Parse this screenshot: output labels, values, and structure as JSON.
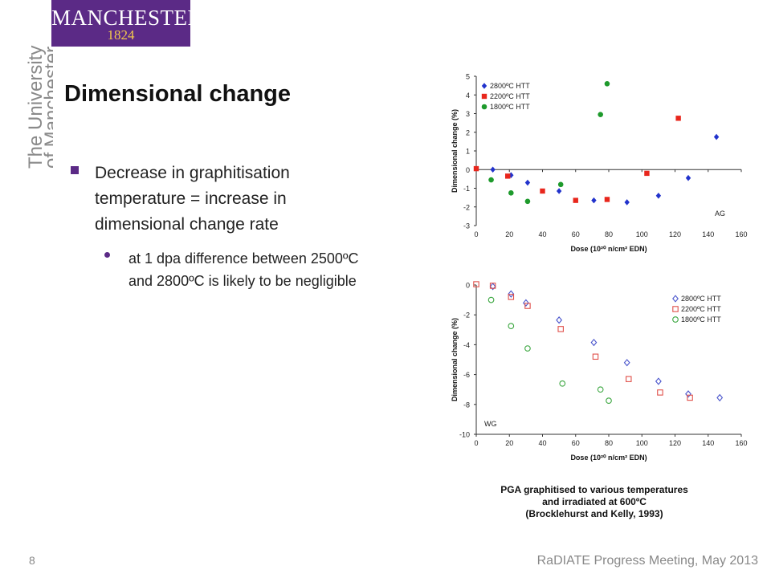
{
  "branding": {
    "logo_word": "MANCHESTER",
    "logo_year": "1824",
    "university_line1": "The University",
    "university_line2": "of Manchester",
    "logo_bg": "#5b2a86",
    "logo_year_color": "#f2c94c"
  },
  "slide": {
    "title": "Dimensional change",
    "bullets": [
      {
        "text": "Decrease in graphitisation temperature = increase in dimensional change rate",
        "sub": [
          {
            "text": "at 1 dpa difference between 2500ºC and 2800ºC is likely to be negligible"
          }
        ]
      }
    ],
    "caption_lines": [
      "PGA graphitised to various temperatures",
      "and irradiated at 600ºC",
      "(Brocklehurst and Kelly, 1993)"
    ],
    "page_number": "8",
    "footer": "RaDIATE Progress Meeting, May 2013"
  },
  "chart_data": [
    {
      "type": "scatter",
      "panel_label": "AG",
      "ylabel": "Dimensional change (%)",
      "xlabel": "Dose (10²⁰ n/cm² EDN)",
      "xlim": [
        0,
        160
      ],
      "ylim": [
        -3,
        5
      ],
      "x_ticks": [
        0,
        20,
        40,
        60,
        80,
        100,
        120,
        140,
        160
      ],
      "y_ticks": [
        -3,
        -2,
        -1,
        0,
        1,
        2,
        3,
        4,
        5
      ],
      "marker_style": "filled",
      "legend_position": "top-left",
      "series": [
        {
          "name": "2800ºC HTT",
          "marker": "diamond",
          "color": "#2233cc",
          "x": [
            10,
            21,
            31,
            50,
            71,
            91,
            110,
            128,
            145
          ],
          "y": [
            0.0,
            -0.3,
            -0.7,
            -1.15,
            -1.65,
            -1.75,
            -1.4,
            -0.45,
            1.75
          ]
        },
        {
          "name": "2200ºC HTT",
          "marker": "square",
          "color": "#e8261c",
          "x": [
            0,
            19,
            40,
            60,
            79,
            103,
            122
          ],
          "y": [
            0.05,
            -0.35,
            -1.15,
            -1.65,
            -1.6,
            -0.2,
            2.75
          ]
        },
        {
          "name": "1800ºC HTT",
          "marker": "circle",
          "color": "#1e9a2c",
          "x": [
            9,
            21,
            31,
            51,
            75,
            79
          ],
          "y": [
            -0.55,
            -1.25,
            -1.7,
            -0.8,
            2.95,
            4.6
          ]
        }
      ]
    },
    {
      "type": "scatter",
      "panel_label": "WG",
      "ylabel": "Dimensional change (%)",
      "xlabel": "Dose (10²⁰ n/cm² EDN)",
      "xlim": [
        0,
        160
      ],
      "ylim": [
        -10,
        0
      ],
      "x_ticks": [
        0,
        20,
        40,
        60,
        80,
        100,
        120,
        140,
        160
      ],
      "y_ticks": [
        -10,
        -8,
        -6,
        -4,
        -2,
        0
      ],
      "marker_style": "hollow",
      "legend_position": "top-right",
      "series": [
        {
          "name": "2800ºC HTT",
          "marker": "diamond",
          "color": "#4a55cc",
          "x": [
            10,
            21,
            30,
            50,
            71,
            91,
            110,
            128,
            147
          ],
          "y": [
            -0.1,
            -0.6,
            -1.2,
            -2.35,
            -3.85,
            -5.2,
            -6.45,
            -7.3,
            -7.55
          ]
        },
        {
          "name": "2200ºC HTT",
          "marker": "square",
          "color": "#e0504a",
          "x": [
            0,
            10,
            21,
            31,
            51,
            72,
            92,
            111,
            129
          ],
          "y": [
            0.05,
            -0.05,
            -0.8,
            -1.4,
            -2.95,
            -4.8,
            -6.3,
            -7.2,
            -7.55
          ]
        },
        {
          "name": "1800ºC HTT",
          "marker": "circle",
          "color": "#3aa63f",
          "x": [
            9,
            21,
            31,
            52,
            75,
            80
          ],
          "y": [
            -1.0,
            -2.75,
            -4.25,
            -6.6,
            -7.0,
            -7.75
          ]
        }
      ]
    }
  ]
}
